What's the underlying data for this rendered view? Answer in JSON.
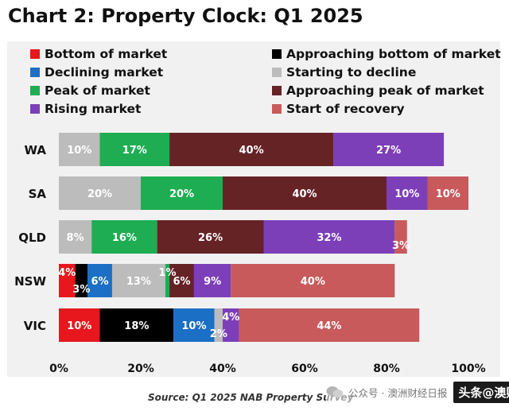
{
  "chart_data": {
    "type": "bar",
    "orientation": "horizontal",
    "stacked": true,
    "title": "Chart 2: Property Clock: Q1 2025",
    "source": "Source: Q1 2025 NAB Property Survey",
    "categories": [
      "WA",
      "SA",
      "QLD",
      "NSW",
      "VIC"
    ],
    "xlim": [
      0,
      100
    ],
    "xticks": [
      "0%",
      "20%",
      "40%",
      "60%",
      "80%",
      "100%"
    ],
    "legend_position": "top",
    "legend": [
      {
        "key": "bottom",
        "label": "Bottom of market",
        "color": "#e8161d"
      },
      {
        "key": "approaching_bottom",
        "label": "Approaching bottom of market",
        "color": "#000000"
      },
      {
        "key": "declining",
        "label": "Declining market",
        "color": "#1b6fc4"
      },
      {
        "key": "starting_decline",
        "label": "Starting to decline",
        "color": "#bcbcbc"
      },
      {
        "key": "peak",
        "label": "Peak of market",
        "color": "#1ead52"
      },
      {
        "key": "approaching_peak",
        "label": "Approaching peak of market",
        "color": "#662326"
      },
      {
        "key": "rising",
        "label": "Rising market",
        "color": "#7c3fb8"
      },
      {
        "key": "recovery",
        "label": "Start of recovery",
        "color": "#c85a5c"
      }
    ],
    "stack_order": [
      "bottom",
      "approaching_bottom",
      "declining",
      "starting_decline",
      "peak",
      "approaching_peak",
      "rising",
      "recovery"
    ],
    "series": [
      {
        "name": "Bottom of market",
        "values": [
          0,
          0,
          0,
          4,
          10
        ],
        "labels": [
          "",
          "",
          "",
          "4%",
          "10%"
        ]
      },
      {
        "name": "Approaching bottom of market",
        "values": [
          0,
          0,
          0,
          3,
          18
        ],
        "labels": [
          "",
          "",
          "",
          "3%",
          "18%"
        ]
      },
      {
        "name": "Declining market",
        "values": [
          0,
          0,
          0,
          6,
          10
        ],
        "labels": [
          "",
          "",
          "",
          "6%",
          "10%"
        ]
      },
      {
        "name": "Starting to decline",
        "values": [
          10,
          20,
          8,
          13,
          2
        ],
        "labels": [
          "10%",
          "20%",
          "8%",
          "13%",
          "2%"
        ]
      },
      {
        "name": "Peak of market",
        "values": [
          17,
          20,
          16,
          1,
          0
        ],
        "labels": [
          "17%",
          "20%",
          "16%",
          "1%",
          ""
        ]
      },
      {
        "name": "Approaching peak of market",
        "values": [
          40,
          40,
          26,
          6,
          0
        ],
        "labels": [
          "40%",
          "40%",
          "26%",
          "6%",
          ""
        ]
      },
      {
        "name": "Rising market",
        "values": [
          27,
          10,
          32,
          9,
          4
        ],
        "labels": [
          "27%",
          "10%",
          "32%",
          "9%",
          "4%"
        ]
      },
      {
        "name": "Start of recovery",
        "values": [
          0,
          10,
          3,
          40,
          44
        ],
        "labels": [
          "",
          "10%",
          "3%",
          "40%",
          "44%"
        ]
      }
    ],
    "grid": false
  },
  "watermark": {
    "left_text": "公众号 · 澳洲财经日报",
    "right_text": "头条@澳财经"
  }
}
